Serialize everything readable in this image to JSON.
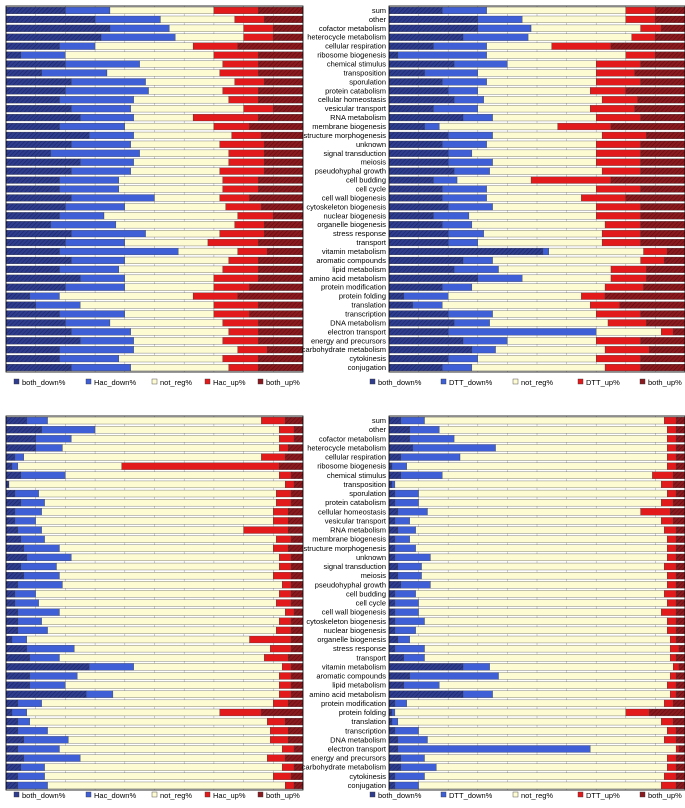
{
  "categories": [
    "sum",
    "other",
    "cofactor metabolism",
    "heterocycle metabolism",
    "cellular respiration",
    "ribosome biogenesis",
    "chemical stimulus",
    "transposition",
    "sporulation",
    "protein catabolism",
    "cellular homeostasis",
    "vesicular transport",
    "RNA metabolism",
    "membrane biogenesis",
    "structure morphogenesis",
    "unknown",
    "signal transduction",
    "meiosis",
    "pseudohyphal growth",
    "cell budding",
    "cell cycle",
    "cell wall biogenesis",
    "cytoskeleton biogenesis",
    "nuclear biogenesis",
    "organelle biogenesis",
    "stress response",
    "transport",
    "vitamin metabolism",
    "aromatic compounds",
    "lipid metabolism",
    "amino acid metabolism",
    "protein modification",
    "protein folding",
    "translation",
    "transcription",
    "DNA metabolism",
    "electron transport",
    "energy and precursors",
    "carbohydrate metabolism",
    "cytokinesis",
    "conjugation"
  ],
  "colors": {
    "both_down": "#2f3d8f",
    "down": "#3f5fd6",
    "not_reg": "#fdfbd2",
    "up": "#e31a1c",
    "both_up": "#8b1a1f"
  },
  "chart_data": [
    {
      "type": "bar",
      "orientation": "horizontal",
      "stacked": "percent",
      "panel": "top-left",
      "legend": [
        "both_down%",
        "Hac_down%",
        "not_reg%",
        "Hac_up%",
        "both_up%"
      ],
      "xlim": [
        0,
        100
      ],
      "series": [
        {
          "name": "both_down%",
          "values": [
            20,
            30,
            35,
            32,
            18,
            5,
            20,
            12,
            22,
            20,
            18,
            22,
            25,
            18,
            28,
            22,
            15,
            25,
            22,
            18,
            18,
            22,
            20,
            18,
            15,
            22,
            20,
            18,
            22,
            18,
            25,
            20,
            8,
            10,
            18,
            20,
            22,
            25,
            18,
            18,
            22
          ]
        },
        {
          "name": "Hac_down%",
          "values": [
            15,
            22,
            20,
            25,
            12,
            15,
            25,
            22,
            25,
            28,
            25,
            20,
            18,
            22,
            15,
            20,
            30,
            18,
            20,
            20,
            20,
            28,
            20,
            15,
            22,
            25,
            20,
            40,
            18,
            20,
            15,
            20,
            10,
            15,
            22,
            15,
            20,
            18,
            25,
            20,
            20
          ]
        },
        {
          "name": "not_reg%",
          "values": [
            35,
            25,
            25,
            23,
            33,
            50,
            28,
            38,
            30,
            25,
            32,
            38,
            20,
            30,
            33,
            30,
            30,
            32,
            30,
            35,
            35,
            22,
            34,
            45,
            40,
            25,
            28,
            20,
            35,
            35,
            30,
            30,
            45,
            45,
            30,
            38,
            33,
            30,
            35,
            35,
            33
          ]
        },
        {
          "name": "Hac_up%",
          "values": [
            15,
            10,
            10,
            10,
            15,
            15,
            12,
            13,
            10,
            12,
            10,
            10,
            22,
            12,
            10,
            15,
            12,
            12,
            15,
            12,
            12,
            10,
            12,
            12,
            10,
            15,
            17,
            10,
            10,
            12,
            15,
            12,
            15,
            15,
            12,
            12,
            10,
            12,
            10,
            12,
            10
          ]
        },
        {
          "name": "both_up%",
          "values": [
            15,
            13,
            10,
            10,
            22,
            15,
            15,
            15,
            13,
            15,
            15,
            10,
            15,
            18,
            14,
            13,
            13,
            13,
            13,
            15,
            15,
            18,
            14,
            10,
            13,
            13,
            15,
            12,
            15,
            15,
            15,
            18,
            22,
            15,
            18,
            15,
            15,
            15,
            12,
            15,
            15
          ]
        }
      ]
    },
    {
      "type": "bar",
      "orientation": "horizontal",
      "stacked": "percent",
      "panel": "top-right",
      "legend": [
        "both_down%",
        "DTT_down%",
        "not_reg%",
        "DTT_up%",
        "both_up%"
      ],
      "xlim": [
        0,
        100
      ],
      "series": [
        {
          "name": "both_down%",
          "values": [
            18,
            30,
            30,
            25,
            15,
            3,
            22,
            12,
            18,
            20,
            22,
            15,
            25,
            12,
            20,
            18,
            20,
            20,
            22,
            15,
            18,
            18,
            20,
            15,
            18,
            20,
            20,
            52,
            25,
            22,
            30,
            18,
            5,
            8,
            20,
            22,
            20,
            25,
            28,
            20,
            18
          ]
        },
        {
          "name": "DTT_down%",
          "values": [
            15,
            15,
            18,
            22,
            18,
            30,
            18,
            18,
            15,
            10,
            10,
            15,
            10,
            5,
            15,
            15,
            8,
            15,
            12,
            8,
            15,
            15,
            15,
            12,
            10,
            12,
            10,
            2,
            10,
            15,
            15,
            10,
            15,
            10,
            15,
            12,
            50,
            15,
            8,
            10,
            10
          ]
        },
        {
          "name": "not_reg%",
          "values": [
            47,
            35,
            37,
            35,
            22,
            47,
            30,
            40,
            37,
            38,
            40,
            38,
            35,
            40,
            37,
            37,
            42,
            35,
            38,
            25,
            37,
            32,
            35,
            43,
            45,
            40,
            42,
            32,
            50,
            38,
            30,
            45,
            45,
            50,
            35,
            40,
            22,
            30,
            37,
            40,
            45
          ]
        },
        {
          "name": "DTT_up%",
          "values": [
            10,
            10,
            7,
            8,
            20,
            10,
            15,
            13,
            15,
            12,
            12,
            15,
            15,
            18,
            15,
            15,
            15,
            15,
            13,
            27,
            15,
            15,
            15,
            15,
            12,
            13,
            13,
            8,
            8,
            12,
            12,
            13,
            8,
            10,
            15,
            13,
            4,
            15,
            15,
            15,
            12
          ]
        },
        {
          "name": "both_up%",
          "values": [
            10,
            10,
            8,
            10,
            25,
            10,
            15,
            17,
            15,
            20,
            16,
            17,
            15,
            25,
            13,
            15,
            15,
            15,
            15,
            25,
            15,
            20,
            15,
            15,
            15,
            15,
            15,
            6,
            7,
            13,
            13,
            14,
            27,
            22,
            15,
            13,
            4,
            15,
            12,
            15,
            15
          ]
        }
      ]
    },
    {
      "type": "bar",
      "orientation": "horizontal",
      "stacked": "percent",
      "panel": "bottom-left",
      "legend": [
        "both_down%",
        "Hac_down%",
        "not_reg%",
        "Hac_up%",
        "both_up%"
      ],
      "xlim": [
        0,
        100
      ],
      "series": [
        {
          "name": "both_down%",
          "values": [
            7,
            12,
            10,
            10,
            3,
            2,
            5,
            1,
            3,
            5,
            3,
            3,
            4,
            5,
            6,
            7,
            5,
            6,
            4,
            3,
            3,
            4,
            4,
            4,
            2,
            7,
            8,
            28,
            8,
            8,
            27,
            4,
            2,
            4,
            4,
            6,
            4,
            6,
            5,
            4,
            4
          ]
        },
        {
          "name": "Hac_down%",
          "values": [
            7,
            18,
            12,
            9,
            3,
            2,
            15,
            0,
            8,
            8,
            9,
            7,
            8,
            8,
            12,
            15,
            12,
            12,
            15,
            7,
            8,
            14,
            8,
            10,
            5,
            16,
            10,
            15,
            16,
            12,
            9,
            8,
            5,
            4,
            10,
            15,
            14,
            19,
            8,
            9,
            10
          ]
        },
        {
          "name": "not_reg%",
          "values": [
            72,
            62,
            70,
            73,
            80,
            35,
            72,
            93,
            80,
            78,
            78,
            80,
            68,
            78,
            72,
            70,
            75,
            72,
            74,
            82,
            80,
            76,
            80,
            77,
            75,
            66,
            69,
            50,
            68,
            72,
            56,
            78,
            65,
            80,
            75,
            68,
            75,
            63,
            80,
            77,
            80
          ]
        },
        {
          "name": "Hac_up%",
          "values": [
            8,
            5,
            5,
            3,
            8,
            53,
            4,
            3,
            5,
            5,
            5,
            5,
            15,
            5,
            5,
            4,
            4,
            6,
            3,
            4,
            5,
            3,
            4,
            5,
            14,
            7,
            8,
            3,
            4,
            4,
            4,
            5,
            14,
            6,
            6,
            6,
            4,
            6,
            4,
            6,
            3
          ]
        },
        {
          "name": "both_up%",
          "values": [
            6,
            3,
            3,
            5,
            6,
            8,
            4,
            3,
            4,
            4,
            5,
            5,
            5,
            4,
            5,
            4,
            4,
            4,
            4,
            4,
            4,
            3,
            4,
            4,
            4,
            4,
            5,
            4,
            4,
            4,
            4,
            5,
            14,
            6,
            5,
            5,
            3,
            6,
            3,
            4,
            3
          ]
        }
      ]
    },
    {
      "type": "bar",
      "orientation": "horizontal",
      "stacked": "percent",
      "panel": "bottom-right",
      "legend": [
        "both_down%",
        "DTT_down%",
        "not_reg%",
        "DTT_up%",
        "both_up%"
      ],
      "xlim": [
        0,
        100
      ],
      "series": [
        {
          "name": "both_down%",
          "values": [
            4,
            7,
            7,
            8,
            4,
            1,
            4,
            1,
            2,
            2,
            3,
            2,
            3,
            2,
            2,
            2,
            3,
            3,
            4,
            2,
            2,
            2,
            2,
            2,
            3,
            2,
            5,
            25,
            7,
            5,
            25,
            2,
            1,
            1,
            2,
            3,
            3,
            4,
            4,
            2,
            2
          ]
        },
        {
          "name": "DTT_down%",
          "values": [
            8,
            10,
            15,
            28,
            20,
            5,
            14,
            1,
            8,
            8,
            10,
            5,
            6,
            5,
            7,
            12,
            8,
            8,
            10,
            7,
            8,
            8,
            10,
            7,
            4,
            10,
            7,
            9,
            30,
            12,
            10,
            4,
            1,
            2,
            8,
            10,
            65,
            8,
            12,
            10,
            8
          ]
        },
        {
          "name": "not_reg%",
          "values": [
            81,
            77,
            72,
            58,
            70,
            88,
            71,
            90,
            84,
            82,
            72,
            85,
            84,
            87,
            85,
            80,
            82,
            83,
            80,
            84,
            84,
            82,
            82,
            85,
            88,
            83,
            83,
            62,
            58,
            77,
            60,
            87,
            78,
            89,
            84,
            80,
            29,
            82,
            78,
            81,
            82
          ]
        },
        {
          "name": "DTT_up%",
          "values": [
            4,
            3,
            3,
            3,
            3,
            3,
            7,
            4,
            3,
            4,
            10,
            4,
            4,
            3,
            3,
            3,
            4,
            3,
            3,
            4,
            3,
            5,
            3,
            3,
            2,
            3,
            2,
            2,
            2,
            3,
            2,
            3,
            8,
            4,
            3,
            4,
            1,
            3,
            3,
            4,
            5
          ]
        },
        {
          "name": "both_up%",
          "values": [
            3,
            3,
            3,
            3,
            3,
            3,
            4,
            4,
            3,
            4,
            5,
            4,
            3,
            3,
            3,
            3,
            3,
            3,
            3,
            3,
            3,
            3,
            3,
            3,
            3,
            2,
            3,
            2,
            3,
            3,
            3,
            4,
            12,
            4,
            3,
            3,
            2,
            3,
            3,
            3,
            3
          ]
        }
      ]
    }
  ]
}
